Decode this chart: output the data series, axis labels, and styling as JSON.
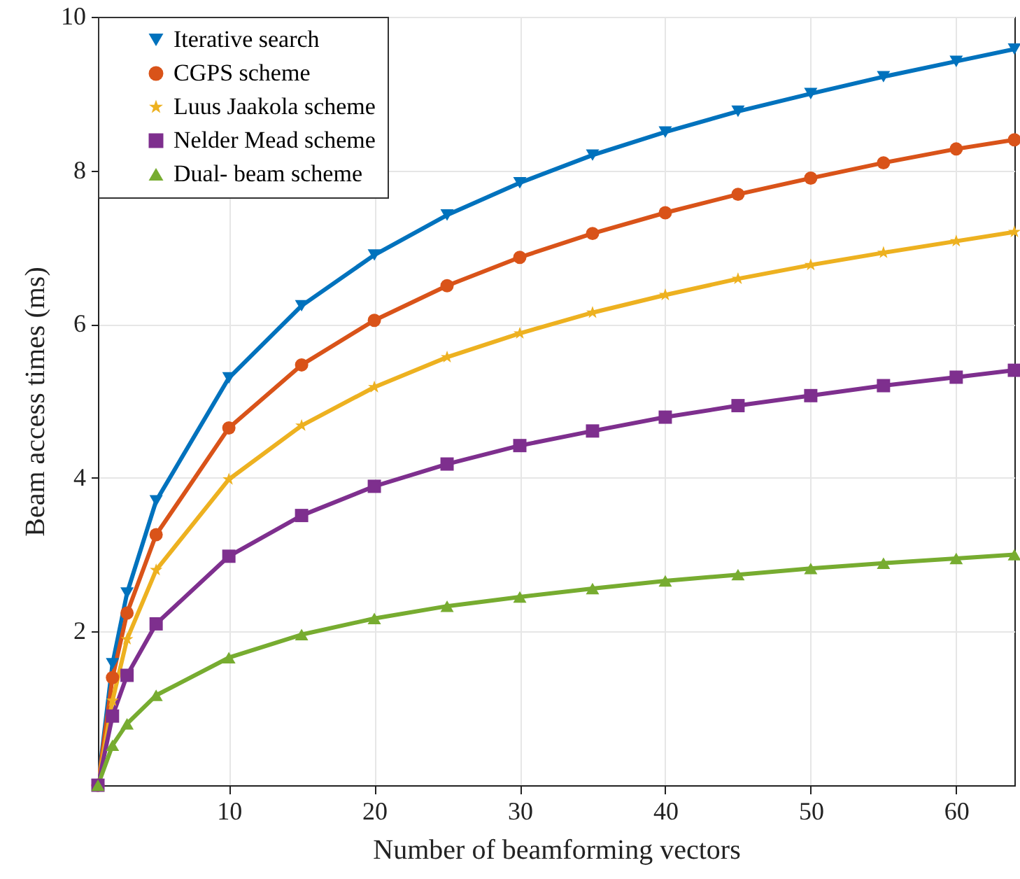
{
  "chart_data": {
    "type": "line",
    "xlabel": "Number of beamforming vectors",
    "ylabel": "Beam access times (ms)",
    "x": [
      1,
      2,
      3,
      5,
      10,
      15,
      20,
      25,
      30,
      35,
      40,
      45,
      50,
      55,
      60,
      64
    ],
    "xlim": [
      1,
      64
    ],
    "xticks": [
      10,
      20,
      30,
      40,
      50,
      60
    ],
    "ylim": [
      0,
      10
    ],
    "yticks": [
      2,
      4,
      6,
      8,
      10
    ],
    "grid": true,
    "legend": "top left",
    "line_style": "solid",
    "series": [
      {
        "name": "Iterative search",
        "color": "#0072bd",
        "marker": "triangle-down",
        "values": [
          0,
          1.58,
          2.5,
          3.7,
          5.3,
          6.24,
          6.9,
          7.42,
          7.84,
          8.2,
          8.5,
          8.77,
          9.0,
          9.22,
          9.42,
          9.58
        ]
      },
      {
        "name": "CGPS scheme",
        "color": "#d95319",
        "marker": "circle",
        "values": [
          0,
          1.4,
          2.24,
          3.26,
          4.65,
          5.47,
          6.05,
          6.5,
          6.87,
          7.18,
          7.45,
          7.69,
          7.9,
          8.1,
          8.28,
          8.4
        ]
      },
      {
        "name": "Luus Jaakola scheme",
        "color": "#edb120",
        "marker": "star",
        "values": [
          0,
          1.1,
          1.9,
          2.8,
          3.98,
          4.68,
          5.18,
          5.57,
          5.88,
          6.15,
          6.38,
          6.59,
          6.77,
          6.93,
          7.08,
          7.2
        ]
      },
      {
        "name": "Nelder Mead scheme",
        "color": "#7e2f8e",
        "marker": "square",
        "values": [
          0,
          0.9,
          1.43,
          2.1,
          2.98,
          3.51,
          3.89,
          4.18,
          4.42,
          4.61,
          4.79,
          4.94,
          5.07,
          5.2,
          5.31,
          5.4
        ]
      },
      {
        "name": "Dual- beam scheme",
        "color": "#77ac30",
        "marker": "triangle",
        "values": [
          0,
          0.52,
          0.8,
          1.17,
          1.66,
          1.96,
          2.17,
          2.33,
          2.45,
          2.56,
          2.66,
          2.74,
          2.82,
          2.89,
          2.95,
          3.0
        ]
      }
    ]
  }
}
